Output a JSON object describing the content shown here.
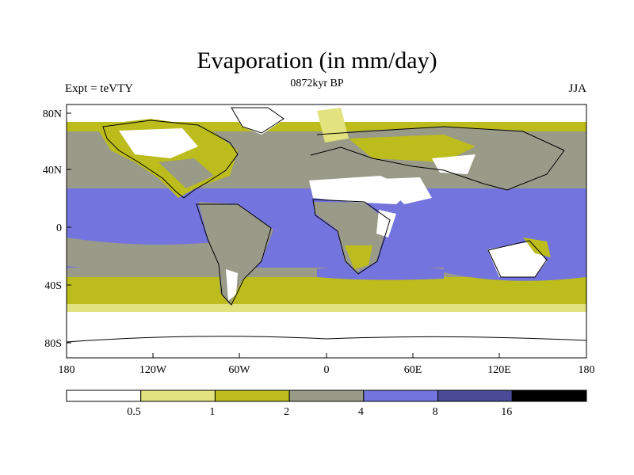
{
  "title": "Evaporation (in mm/day)",
  "subtitle": "0872kyr BP",
  "left_label": "Expt = teVTY",
  "right_label": "JJA",
  "map": {
    "lat_labels": [
      "80N",
      "40N",
      "0",
      "40S",
      "80S"
    ],
    "lon_labels": [
      "180",
      "120W",
      "60W",
      "0",
      "60E",
      "120E",
      "180"
    ]
  },
  "legend": {
    "levels": [
      "0.5",
      "1",
      "2",
      "4",
      "8",
      "16"
    ],
    "colors": [
      "#ffffff",
      "#e2e27e",
      "#bcbc1c",
      "#9a9a88",
      "#7474de",
      "#4a4a96",
      "#000000"
    ]
  },
  "palette": {
    "land_outline": "#000000",
    "ocean_subtropics": "#7474de",
    "ocean_midlat": "#9a9a88",
    "ocean_highlat": "#bcbc1c"
  }
}
